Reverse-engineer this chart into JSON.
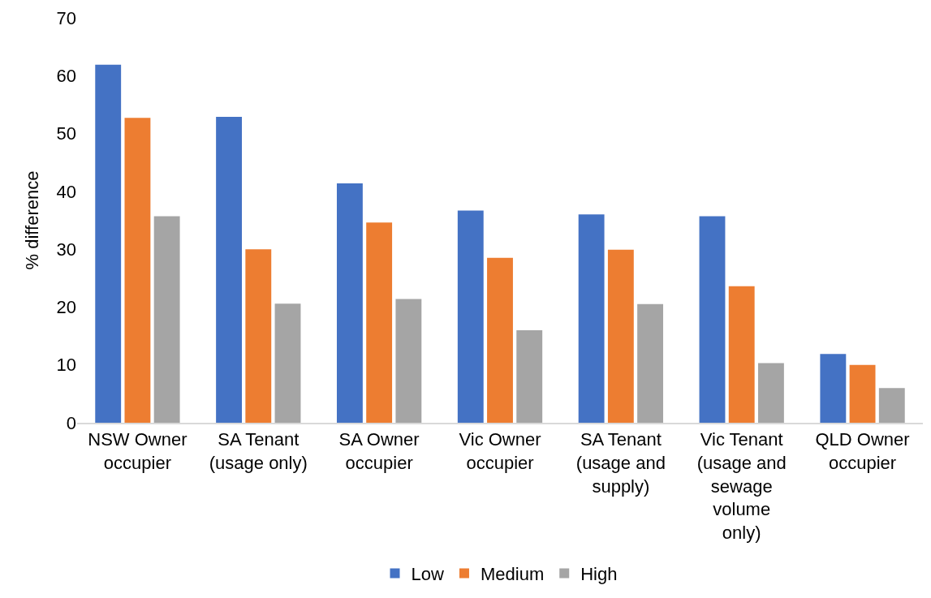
{
  "chart_data": {
    "type": "bar",
    "ylabel": "% difference",
    "categories": [
      "NSW Owner\noccupier",
      "SA Tenant\n(usage only)",
      "SA Owner\noccupier",
      "Vic Owner\noccupier",
      "SA Tenant\n(usage and\nsupply)",
      "Vic Tenant\n(usage and\nsewage\nvolume\nonly)",
      "QLD Owner\noccupier"
    ],
    "series": [
      {
        "name": "Low",
        "color": "#4472c4",
        "values": [
          61.9,
          52.9,
          41.4,
          36.7,
          36.0,
          35.7,
          11.9
        ]
      },
      {
        "name": "Medium",
        "color": "#ed7d31",
        "values": [
          52.7,
          30.0,
          34.6,
          28.5,
          29.9,
          23.6,
          10.0
        ]
      },
      {
        "name": "High",
        "color": "#a5a5a5",
        "values": [
          35.7,
          20.6,
          21.4,
          16.0,
          20.5,
          10.3,
          6.0
        ]
      }
    ],
    "ylim": [
      0,
      70
    ],
    "yticks": [
      0,
      10,
      20,
      30,
      40,
      50,
      60,
      70
    ],
    "grid": false,
    "legend": "bottom"
  }
}
